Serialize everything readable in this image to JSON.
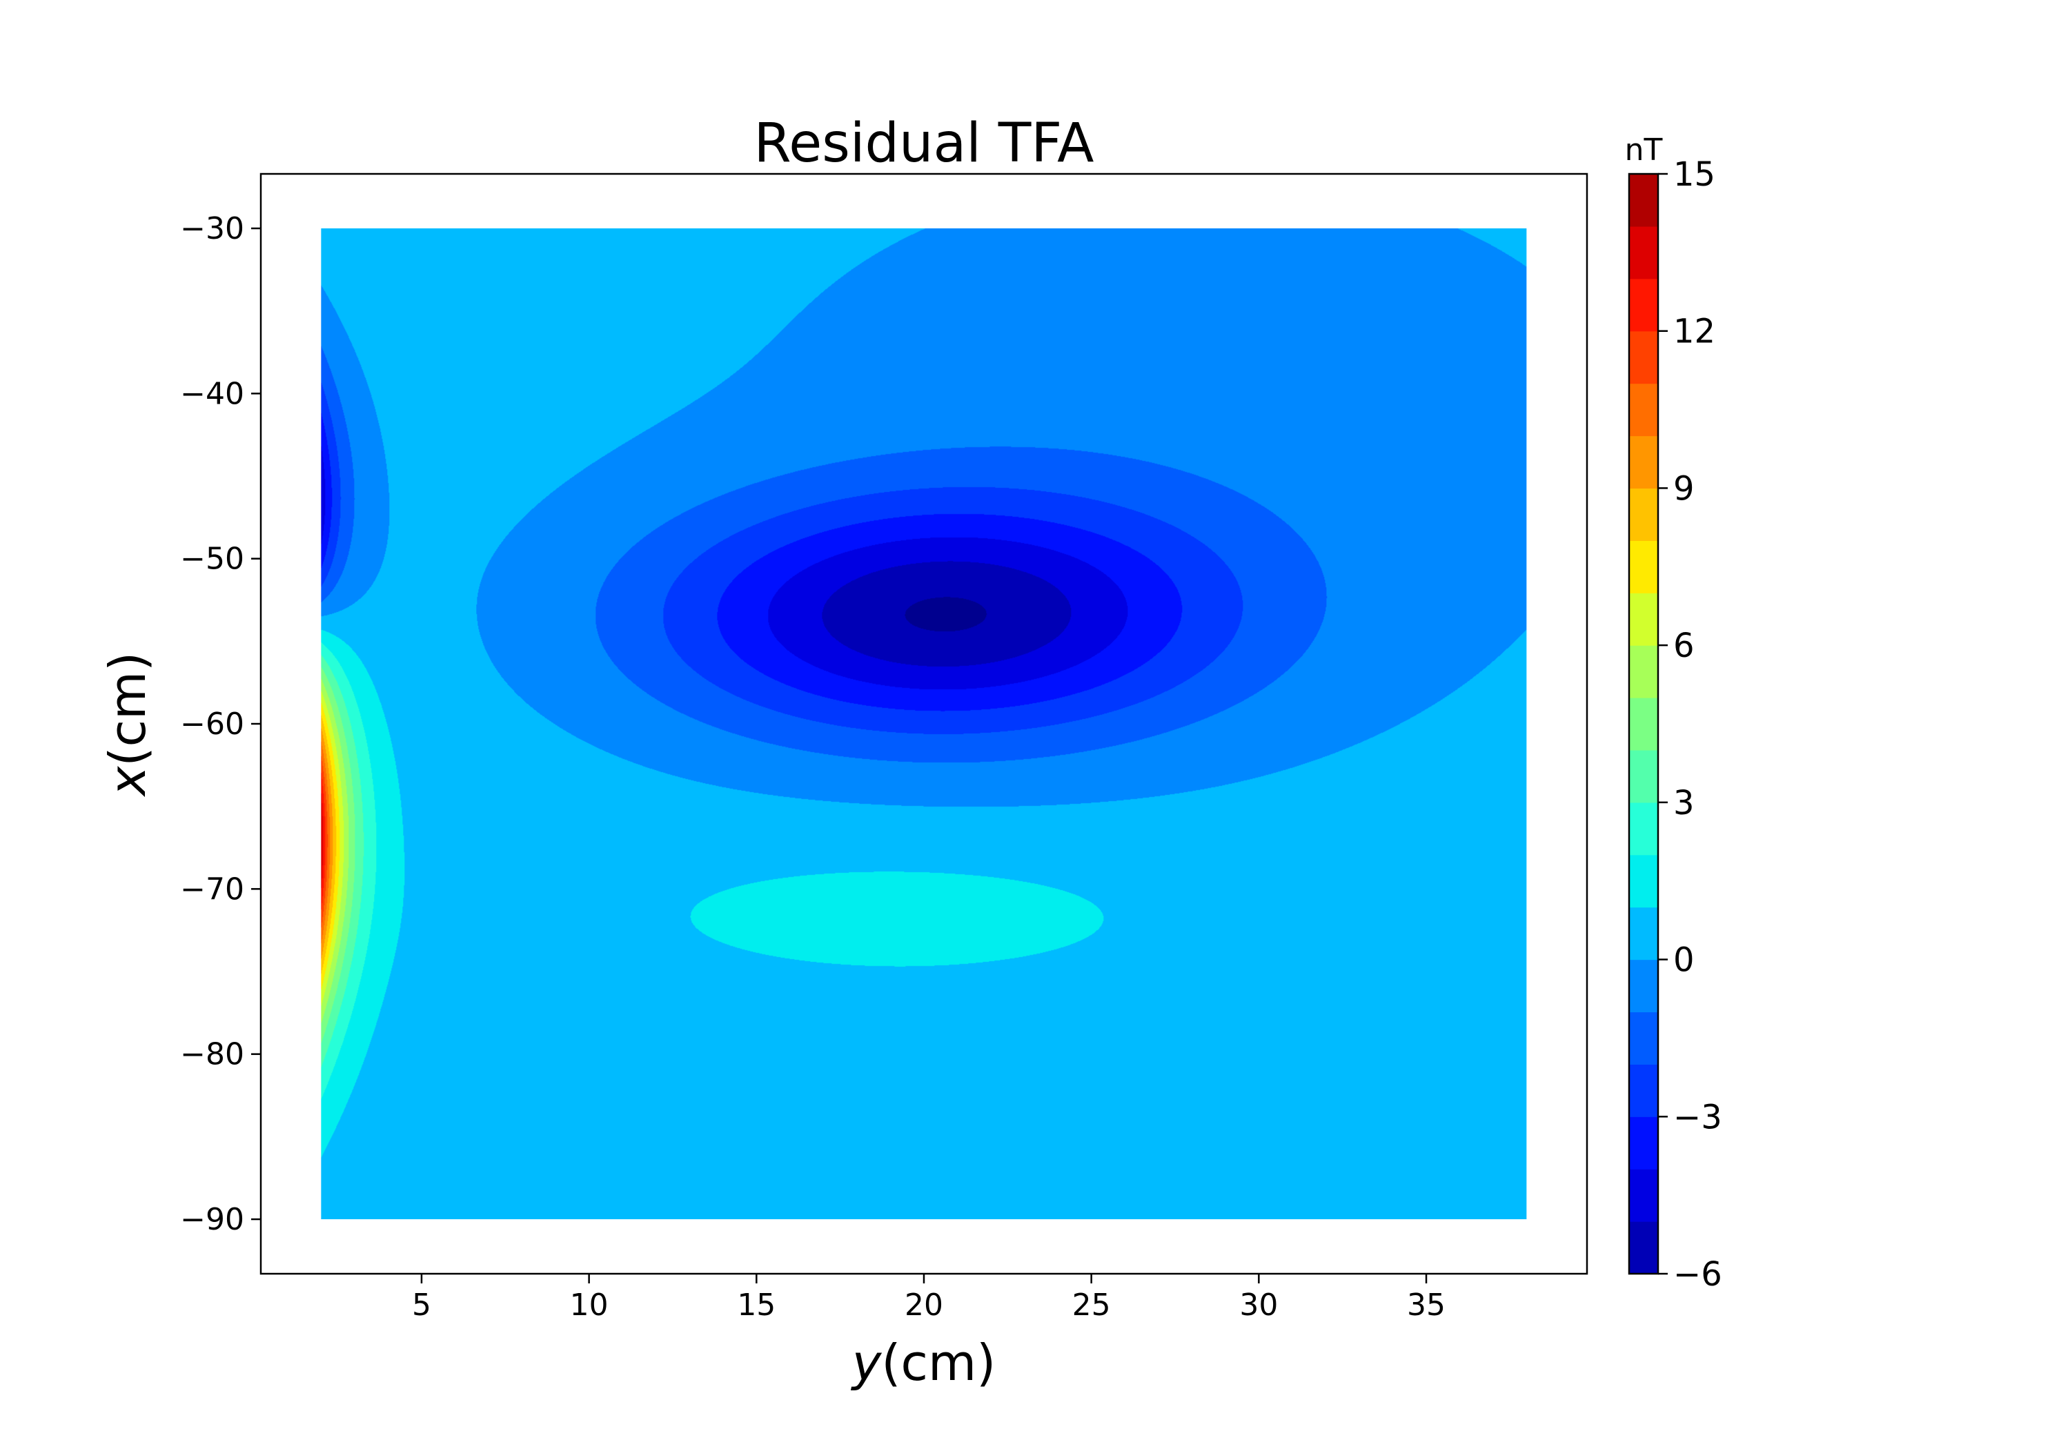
{
  "chart_data": {
    "type": "heatmap",
    "title": "Residual TFA",
    "xlabel": {
      "var": "y",
      "unit": "(cm)"
    },
    "ylabel": {
      "var": "x",
      "unit": "(cm)"
    },
    "xlim": [
      0.2,
      39.8
    ],
    "ylim": [
      -93.3,
      -26.7
    ],
    "x_ticks": [
      5,
      10,
      15,
      20,
      25,
      30,
      35
    ],
    "y_ticks": [
      -30,
      -40,
      -50,
      -60,
      -70,
      -80,
      -90
    ],
    "x_tick_labels": [
      "5",
      "10",
      "15",
      "20",
      "25",
      "30",
      "35"
    ],
    "y_tick_labels": [
      "−30",
      "−40",
      "−50",
      "−60",
      "−70",
      "−80",
      "−90"
    ],
    "data_extent": {
      "y": [
        2,
        38
      ],
      "x": [
        -90,
        -30
      ]
    },
    "colorbar": {
      "unit": "nT",
      "vmin": -6,
      "vmax": 15,
      "ticks": [
        15,
        12,
        9,
        6,
        3,
        0,
        -3,
        -6
      ],
      "tick_labels": [
        "15",
        "12",
        "9",
        "6",
        "3",
        "0",
        "−3",
        "−6"
      ],
      "levels": [
        -6,
        -5,
        -4,
        -3,
        -2,
        -1,
        0,
        1,
        2,
        3,
        4,
        5,
        6,
        7,
        8,
        9,
        10,
        11,
        12,
        13,
        14,
        15
      ],
      "colors": [
        "#00008f",
        "#0000b6",
        "#0000e2",
        "#0010ff",
        "#0038ff",
        "#005cff",
        "#0088ff",
        "#00bbff",
        "#00eeee",
        "#27ffd8",
        "#53ffac",
        "#7bff84",
        "#a7ff58",
        "#d2ff2d",
        "#ffea00",
        "#ffc200",
        "#ff9600",
        "#ff6e00",
        "#ff4100",
        "#ff1700",
        "#dd0000",
        "#b00000",
        "#8a0000"
      ]
    },
    "features": [
      {
        "kind": "negative-anomaly",
        "center": {
          "y": 20.5,
          "x": -53.5
        },
        "peak_nT": -5.6
      },
      {
        "kind": "positive-anomaly",
        "center": {
          "y": 19.5,
          "x": -71.5
        },
        "peak_nT": 1.5
      },
      {
        "kind": "edge-negative",
        "center": {
          "y": 2,
          "x": -47
        },
        "peak_nT": -5
      },
      {
        "kind": "edge-positive",
        "center": {
          "y": 2,
          "x": -67
        },
        "peak_nT": 14
      }
    ],
    "background_nT": 0.5,
    "grid": false,
    "legend": "colorbar-right"
  }
}
